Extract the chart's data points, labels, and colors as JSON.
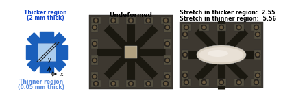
{
  "bg_color": "#ffffff",
  "panel1": {
    "title_top": "Thicker region",
    "title_top2": "(2 mm thick)",
    "title_bottom": "Thinner region",
    "title_bottom2": "(0.05 mm thick)",
    "title_color_top": "#1144cc",
    "title_color_bottom": "#5588dd",
    "arm_color": "#1a5fbb",
    "center_color": "#aaccee",
    "axis_label_x": "x",
    "axis_label_y": "y"
  },
  "panel2": {
    "label": "Undeformed"
  },
  "panel3": {
    "label1": "Stretch in thicker region:  2.55",
    "label2": "Stretch in thinner region:  5.56"
  }
}
